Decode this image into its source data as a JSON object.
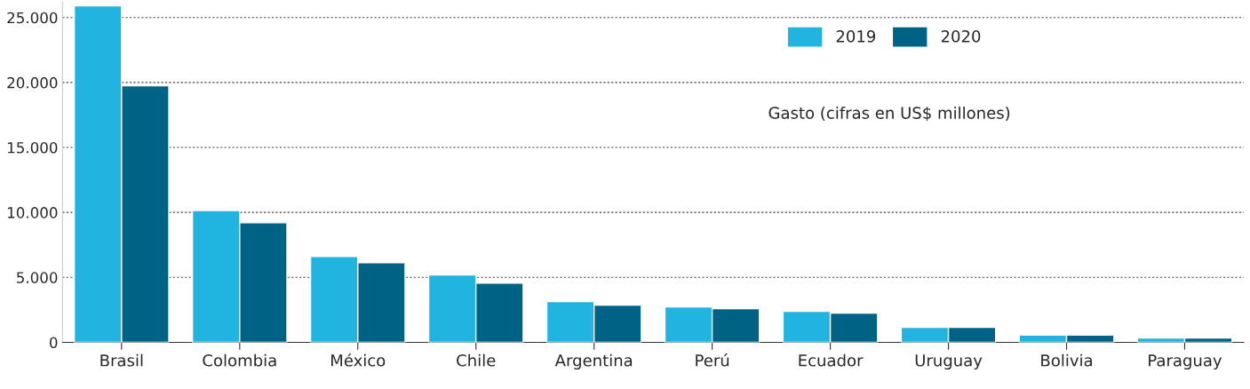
{
  "chart_data": {
    "type": "bar",
    "categories": [
      "Brasil",
      "Colombia",
      "México",
      "Chile",
      "Argentina",
      "Perú",
      "Ecuador",
      "Uruguay",
      "Bolivia",
      "Paraguay"
    ],
    "series": [
      {
        "name": "2019",
        "color": "#21b4e1",
        "values": [
          25900,
          10150,
          6600,
          5180,
          3130,
          2720,
          2380,
          1160,
          550,
          340
        ]
      },
      {
        "name": "2020",
        "color": "#006285",
        "values": [
          19750,
          9200,
          6130,
          4560,
          2860,
          2590,
          2250,
          1160,
          550,
          340
        ]
      }
    ],
    "ylim": [
      0,
      26200
    ],
    "yticks": [
      0,
      {
        "value": 5000,
        "label": "5.000"
      },
      {
        "value": 10000,
        "label": "10.000"
      },
      {
        "value": 15000,
        "label": "15.000"
      },
      {
        "value": 20000,
        "label": "20.000"
      },
      {
        "value": 25000,
        "label": "25.000"
      }
    ],
    "grid": "y",
    "legend": "top right",
    "annotations": [
      "Gasto (cifras en US$ millones)"
    ]
  }
}
